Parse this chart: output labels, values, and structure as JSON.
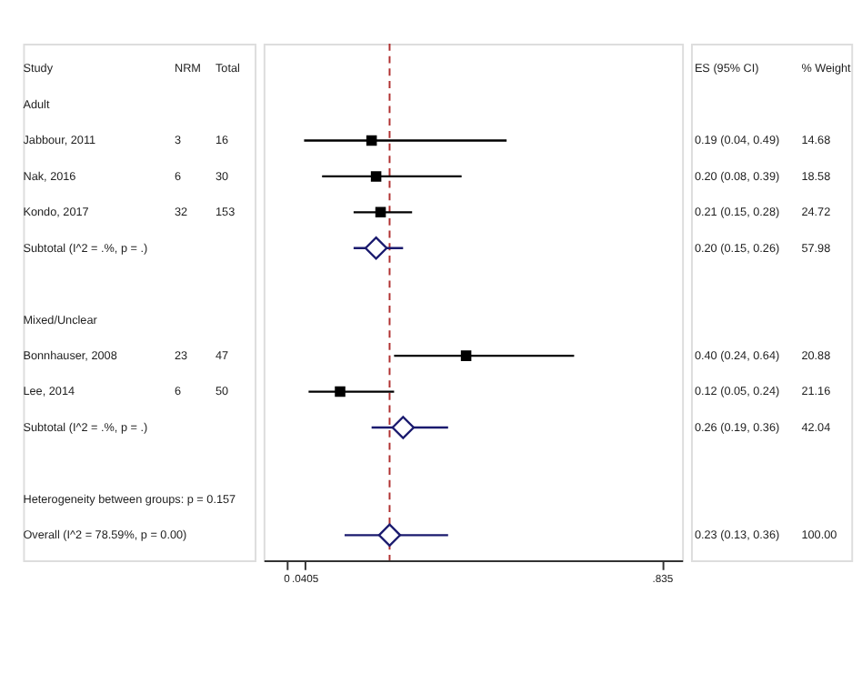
{
  "chart_data": {
    "type": "scatter",
    "orientation": "horizontal",
    "categories": [
      "Study",
      "Adult",
      "Jabbour, 2011",
      "Nak, 2016",
      "Kondo, 2017",
      "Subtotal  (I^2 = .%, p = .)",
      null,
      "Mixed/Unclear",
      "Bonnhauser, 2008",
      "Lee, 2014",
      "Subtotal  (I^2 = .%, p = .)",
      null,
      "Heterogeneity between groups: p = 0.157",
      "Overall  (I^2 = 78.59%, p = 0.00)"
    ],
    "series": [
      {
        "color": "#000000",
        "marker": "square",
        "values": [
          null,
          null,
          0.19,
          0.2,
          0.21,
          null,
          null,
          null,
          0.4,
          0.12,
          null,
          null,
          null,
          null
        ],
        "errors": [
          null,
          null,
          [
            0.04,
            0.49
          ],
          [
            0.08,
            0.39
          ],
          [
            0.15,
            0.28
          ],
          null,
          null,
          null,
          [
            0.24,
            0.64
          ],
          [
            0.05,
            0.24
          ],
          null,
          null,
          null,
          null
        ]
      },
      {
        "color": "#1a1a6e",
        "marker": "diamond",
        "values": [
          null,
          null,
          null,
          null,
          null,
          0.2,
          null,
          null,
          null,
          null,
          0.26,
          null,
          null,
          0.23
        ],
        "errors": [
          null,
          null,
          null,
          null,
          null,
          [
            0.15,
            0.26
          ],
          null,
          null,
          null,
          null,
          [
            0.19,
            0.36
          ],
          null,
          null,
          [
            0.13,
            0.36
          ]
        ]
      }
    ],
    "annotations": [
      "NRM",
      "Total",
      "ES (95% CI)",
      "% Weight",
      "3",
      "16",
      "0.19 (0.04, 0.49)",
      "14.68",
      "6",
      "30",
      "0.20 (0.08, 0.39)",
      "18.58",
      "32",
      "153",
      "0.21 (0.15, 0.28)",
      "24.72",
      "0.20 (0.15, 0.26)",
      "57.98",
      "23",
      "47",
      "0.40 (0.24, 0.64)",
      "20.88",
      "6",
      "50",
      "0.12 (0.05, 0.24)",
      "21.16",
      "0.26 (0.19, 0.36)",
      "42.04",
      "0.23 (0.13, 0.36)",
      "100.00"
    ],
    "ref_lines": [
      {
        "axis": "x",
        "value": 0.23,
        "color": "#b03030",
        "line_style": "dashed"
      }
    ],
    "xlim": [
      -0.05,
      0.88
    ],
    "xticks": [
      0,
      {
        "value": 0.0405,
        "label": ".0405"
      },
      {
        "value": 0.835,
        "label": ".835"
      }
    ],
    "grid": false,
    "tick_labels": "x"
  }
}
